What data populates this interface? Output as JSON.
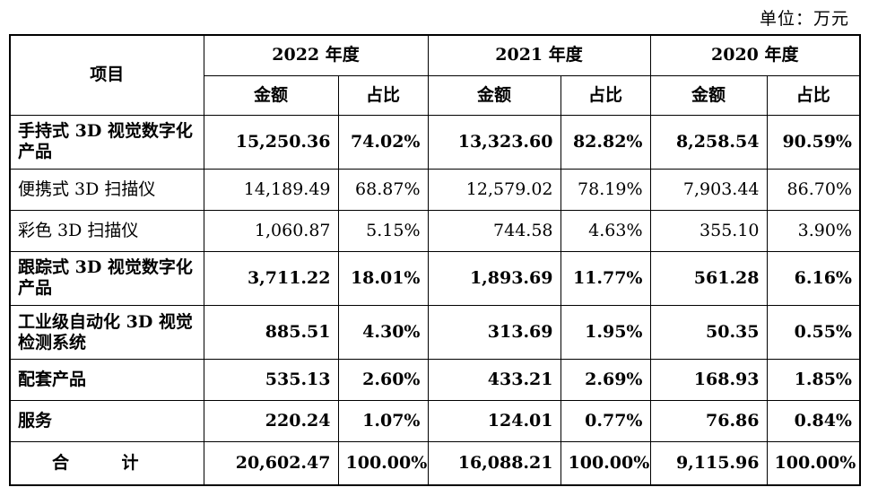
{
  "unit": "单位：万元",
  "header": {
    "item": "项目",
    "years": [
      "2022 年度",
      "2021 年度",
      "2020 年度"
    ],
    "sub": [
      "金额",
      "占比",
      "金额",
      "占比",
      "金额",
      "占比"
    ]
  },
  "rows": [
    {
      "label": "手持式 3D 视觉数字化产品",
      "bold": true,
      "cells": [
        "15,250.36",
        "74.02%",
        "13,323.60",
        "82.82%",
        "8,258.54",
        "90.59%"
      ]
    },
    {
      "label": "便携式 3D 扫描仪",
      "bold": false,
      "cells": [
        "14,189.49",
        "68.87%",
        "12,579.02",
        "78.19%",
        "7,903.44",
        "86.70%"
      ]
    },
    {
      "label": "彩色 3D 扫描仪",
      "bold": false,
      "cells": [
        "1,060.87",
        "5.15%",
        "744.58",
        "4.63%",
        "355.10",
        "3.90%"
      ]
    },
    {
      "label": "跟踪式 3D 视觉数字化产品",
      "bold": true,
      "cells": [
        "3,711.22",
        "18.01%",
        "1,893.69",
        "11.77%",
        "561.28",
        "6.16%"
      ]
    },
    {
      "label": "工业级自动化 3D 视觉检测系统",
      "bold": true,
      "cells": [
        "885.51",
        "4.30%",
        "313.69",
        "1.95%",
        "50.35",
        "0.55%"
      ]
    },
    {
      "label": "配套产品",
      "bold": true,
      "cells": [
        "535.13",
        "2.60%",
        "433.21",
        "2.69%",
        "168.93",
        "1.85%"
      ]
    },
    {
      "label": "服务",
      "bold": true,
      "cells": [
        "220.24",
        "1.07%",
        "124.01",
        "0.77%",
        "76.86",
        "0.84%"
      ]
    }
  ],
  "total": {
    "label": "合 计",
    "cells": [
      "20,602.47",
      "100.00%",
      "16,088.21",
      "100.00%",
      "9,115.96",
      "100.00%"
    ]
  }
}
